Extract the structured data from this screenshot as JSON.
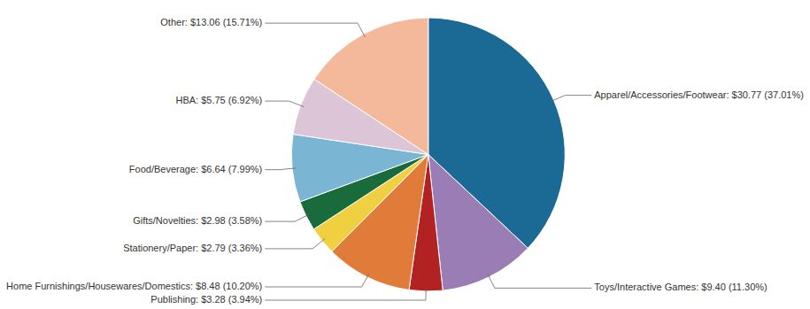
{
  "chart_data": {
    "type": "pie",
    "categories": [
      "Apparel/Accessories/Footwear: $30.77 (37.01%)",
      "Toys/Interactive Games: $9.40 (11.30%)",
      "Publishing: $3.28 (3.94%)",
      "Home Furnishings/Housewares/Domestics: $8.48 (10.20%)",
      "Stationery/Paper: $2.79 (3.36%)",
      "Gifts/Novelties: $2.98 (3.58%)",
      "Food/Beverage: $6.64 (7.99%)",
      "HBA: $5.75 (6.92%)",
      "Other: $13.06 (15.71%)"
    ],
    "values": [
      37.01,
      11.3,
      3.94,
      10.2,
      3.36,
      3.58,
      7.99,
      6.92,
      15.71
    ],
    "colors": [
      "#1b6a96",
      "#9b7db5",
      "#b22222",
      "#e07b39",
      "#f0d040",
      "#1a6b3c",
      "#7ab5d4",
      "#ddc5d8",
      "#f4b89a"
    ]
  }
}
